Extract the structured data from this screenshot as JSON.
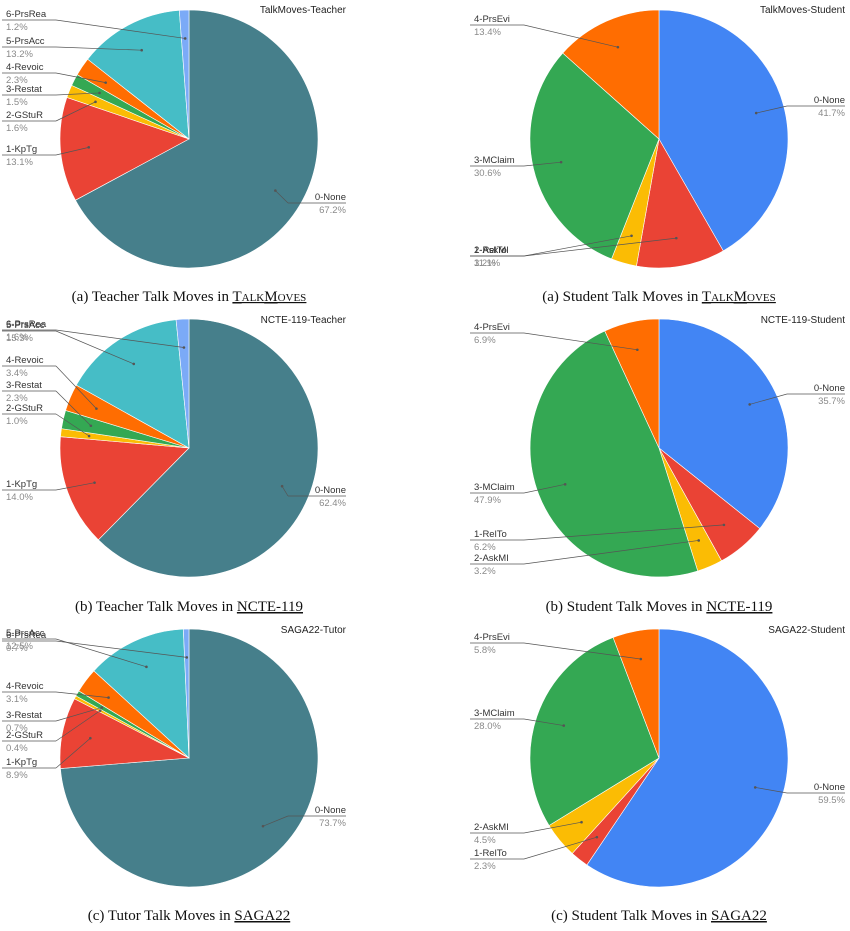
{
  "colors": {
    "None_teacher": "#467f8b",
    "None_student": "#4285f4",
    "KpTg": "#ea4335",
    "RelTo": "#ea4335",
    "GStuR": "#fbbc04",
    "AskMI": "#fbbc04",
    "Restat": "#34a853",
    "MClaim": "#34a853",
    "Revoic": "#ff6d01",
    "PrsEvi": "#ff6d01",
    "PrsAcc": "#46bdc6",
    "PrsRea": "#7baaf7"
  },
  "chart_data": [
    {
      "type": "pie",
      "title": "TalkMoves-Teacher",
      "caption": {
        "prefix": "(a) Teacher Talk Moves in ",
        "dataset": "TALKMOVES"
      },
      "slices": [
        {
          "label": "0-None",
          "value": 67.2,
          "pct": "67.2%",
          "color": "#467f8b"
        },
        {
          "label": "1-KpTg",
          "value": 13.1,
          "pct": "13.1%",
          "color": "#ea4335"
        },
        {
          "label": "2-GStuR",
          "value": 1.6,
          "pct": "1.6%",
          "color": "#fbbc04"
        },
        {
          "label": "3-Restat",
          "value": 1.5,
          "pct": "1.5%",
          "color": "#34a853"
        },
        {
          "label": "4-Revoic",
          "value": 2.3,
          "pct": "2.3%",
          "color": "#ff6d01"
        },
        {
          "label": "5-PrsAcc",
          "value": 13.2,
          "pct": "13.2%",
          "color": "#46bdc6"
        },
        {
          "label": "6-PrsRea",
          "value": 1.2,
          "pct": "1.2%",
          "color": "#7baaf7"
        }
      ]
    },
    {
      "type": "pie",
      "title": "TalkMoves-Student",
      "caption": {
        "prefix": "(a) Student Talk Moves in ",
        "dataset": "TALKMOVES"
      },
      "slices": [
        {
          "label": "0-None",
          "value": 41.7,
          "pct": "41.7%",
          "color": "#4285f4"
        },
        {
          "label": "1-RelTo",
          "value": 11.1,
          "pct": "11.1%",
          "color": "#ea4335"
        },
        {
          "label": "2-AskMI",
          "value": 3.2,
          "pct": "3.2%",
          "color": "#fbbc04"
        },
        {
          "label": "3-MClaim",
          "value": 30.6,
          "pct": "30.6%",
          "color": "#34a853"
        },
        {
          "label": "4-PrsEvi",
          "value": 13.4,
          "pct": "13.4%",
          "color": "#ff6d01"
        }
      ]
    },
    {
      "type": "pie",
      "title": "NCTE-119-Teacher",
      "caption": {
        "prefix": "(b) Teacher Talk Moves in ",
        "dataset": "NCTE-119"
      },
      "slices": [
        {
          "label": "0-None",
          "value": 62.4,
          "pct": "62.4%",
          "color": "#467f8b"
        },
        {
          "label": "1-KpTg",
          "value": 14.0,
          "pct": "14.0%",
          "color": "#ea4335"
        },
        {
          "label": "2-GStuR",
          "value": 1.0,
          "pct": "1.0%",
          "color": "#fbbc04"
        },
        {
          "label": "3-Restat",
          "value": 2.3,
          "pct": "2.3%",
          "color": "#34a853"
        },
        {
          "label": "4-Revoic",
          "value": 3.4,
          "pct": "3.4%",
          "color": "#ff6d01"
        },
        {
          "label": "5-PrsAcc",
          "value": 15.3,
          "pct": "15.3%",
          "color": "#46bdc6"
        },
        {
          "label": "6-PrsRea",
          "value": 1.6,
          "pct": "1.6%",
          "color": "#7baaf7"
        }
      ]
    },
    {
      "type": "pie",
      "title": "NCTE-119-Student",
      "caption": {
        "prefix": "(b) Student Talk Moves in ",
        "dataset": "NCTE-119"
      },
      "slices": [
        {
          "label": "0-None",
          "value": 35.7,
          "pct": "35.7%",
          "color": "#4285f4"
        },
        {
          "label": "1-RelTo",
          "value": 6.2,
          "pct": "6.2%",
          "color": "#ea4335"
        },
        {
          "label": "2-AskMI",
          "value": 3.2,
          "pct": "3.2%",
          "color": "#fbbc04"
        },
        {
          "label": "3-MClaim",
          "value": 47.9,
          "pct": "47.9%",
          "color": "#34a853"
        },
        {
          "label": "4-PrsEvi",
          "value": 6.9,
          "pct": "6.9%",
          "color": "#ff6d01"
        }
      ]
    },
    {
      "type": "pie",
      "title": "SAGA22-Tutor",
      "caption": {
        "prefix": "(c) Tutor Talk Moves in ",
        "dataset": "SAGA22"
      },
      "slices": [
        {
          "label": "0-None",
          "value": 73.7,
          "pct": "73.7%",
          "color": "#467f8b"
        },
        {
          "label": "1-KpTg",
          "value": 8.9,
          "pct": "8.9%",
          "color": "#ea4335"
        },
        {
          "label": "2-GStuR",
          "value": 0.4,
          "pct": "0.4%",
          "color": "#fbbc04"
        },
        {
          "label": "3-Restat",
          "value": 0.7,
          "pct": "0.7%",
          "color": "#34a853"
        },
        {
          "label": "4-Revoic",
          "value": 3.1,
          "pct": "3.1%",
          "color": "#ff6d01"
        },
        {
          "label": "5-PrsAcc",
          "value": 12.5,
          "pct": "12.5%",
          "color": "#46bdc6"
        },
        {
          "label": "6-PrsRea",
          "value": 0.7,
          "pct": "0.7%",
          "color": "#7baaf7"
        }
      ]
    },
    {
      "type": "pie",
      "title": "SAGA22-Student",
      "caption": {
        "prefix": "(c) Student Talk Moves in ",
        "dataset": "SAGA22"
      },
      "slices": [
        {
          "label": "0-None",
          "value": 59.5,
          "pct": "59.5%",
          "color": "#4285f4"
        },
        {
          "label": "1-RelTo",
          "value": 2.3,
          "pct": "2.3%",
          "color": "#ea4335"
        },
        {
          "label": "2-AskMI",
          "value": 4.5,
          "pct": "4.5%",
          "color": "#fbbc04"
        },
        {
          "label": "3-MClaim",
          "value": 28.0,
          "pct": "28.0%",
          "color": "#34a853"
        },
        {
          "label": "4-PrsEvi",
          "value": 5.8,
          "pct": "5.8%",
          "color": "#ff6d01"
        }
      ]
    }
  ]
}
